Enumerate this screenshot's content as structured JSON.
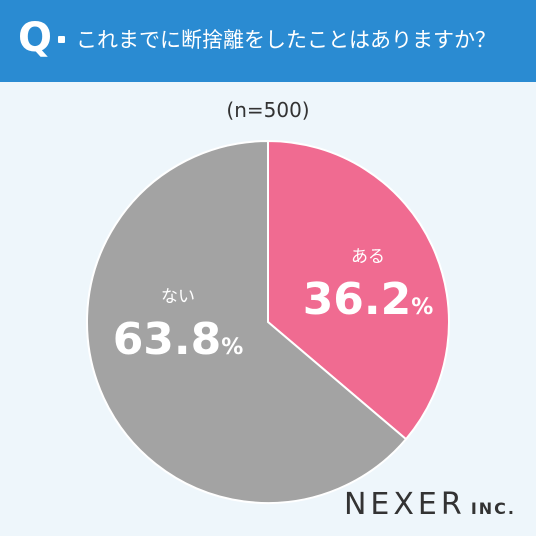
{
  "header": {
    "q_mark": "Q",
    "question": "これまでに断捨離をしたことはありますか？"
  },
  "chart_data": {
    "type": "pie",
    "title": "これまでに断捨離をしたことはありますか？",
    "sample_size_label": "(n=500)",
    "unit": "%",
    "categories": [
      "ある",
      "ない"
    ],
    "values": [
      36.2,
      63.8
    ],
    "value_labels": [
      "36.2",
      "63.8"
    ],
    "colors": [
      "#f06b91",
      "#a3a3a3"
    ],
    "start_angle": "12 o'clock",
    "direction": "clockwise"
  },
  "logo": {
    "main": "NEXER",
    "sub": "INC."
  }
}
